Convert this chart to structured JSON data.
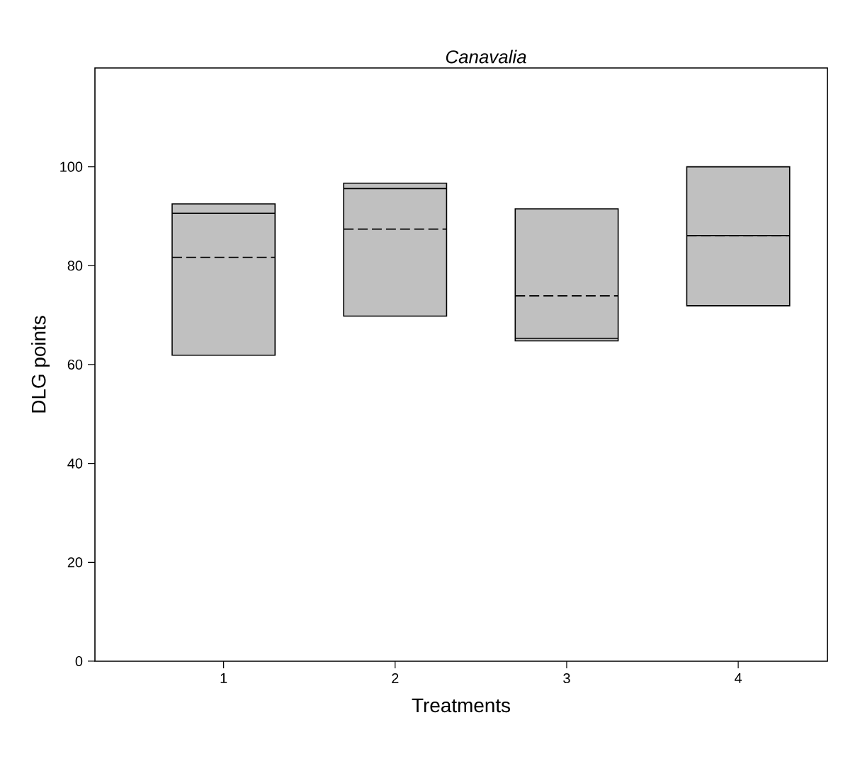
{
  "chart_data": {
    "type": "box",
    "title": "Canavalia",
    "xlabel": "Treatments",
    "ylabel": "DLG points",
    "categories": [
      "1",
      "2",
      "3",
      "4"
    ],
    "boxes": [
      {
        "low": 61.9,
        "q1": 61.9,
        "median": 90.6,
        "q3": 92.5,
        "high": 92.5,
        "mean": 81.7
      },
      {
        "low": 69.8,
        "q1": 69.8,
        "median": 95.6,
        "q3": 96.7,
        "high": 96.7,
        "mean": 87.4
      },
      {
        "low": 64.8,
        "q1": 64.8,
        "median": 65.3,
        "q3": 91.5,
        "high": 91.5,
        "mean": 73.9
      },
      {
        "low": 71.9,
        "q1": 71.9,
        "median": 86.1,
        "q3": 100,
        "high": 100,
        "mean": 86.1
      }
    ],
    "color": "#c0c0c0",
    "ylim": [
      0,
      120
    ],
    "yticks": [
      0,
      20,
      40,
      60,
      80,
      100
    ]
  }
}
